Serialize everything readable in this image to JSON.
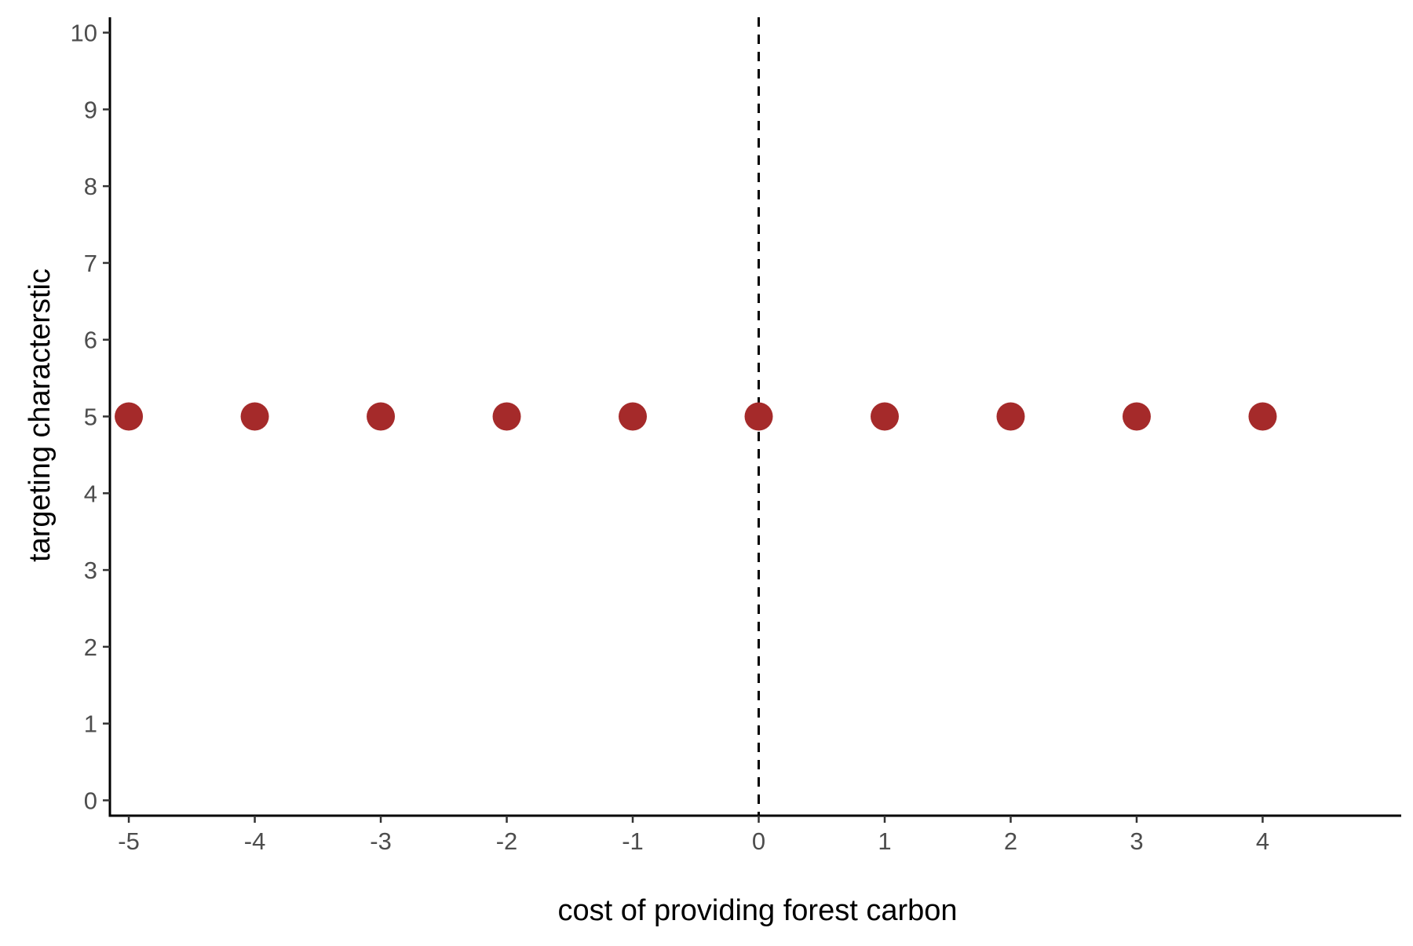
{
  "chart_data": {
    "type": "scatter",
    "title": "",
    "xlabel": "cost of providing forest carbon",
    "ylabel": "targeting characterstic",
    "xlim": [
      -5.15,
      5.1
    ],
    "ylim": [
      -0.2,
      10.2
    ],
    "x_ticks": [
      -5,
      -4,
      -3,
      -2,
      -1,
      0,
      1,
      2,
      3,
      4
    ],
    "y_ticks": [
      0,
      1,
      2,
      3,
      4,
      5,
      6,
      7,
      8,
      9,
      10
    ],
    "grid": false,
    "legend": "none",
    "reference_lines": [
      {
        "axis": "x",
        "value": 0,
        "style": "dashed",
        "color": "#000000"
      }
    ],
    "series": [
      {
        "color": "#A52A2A",
        "x": [
          -5,
          -4,
          -3,
          -2,
          -1,
          0,
          1,
          2,
          3,
          4
        ],
        "y": [
          5,
          5,
          5,
          5,
          5,
          5,
          5,
          5,
          5,
          5
        ]
      }
    ]
  }
}
